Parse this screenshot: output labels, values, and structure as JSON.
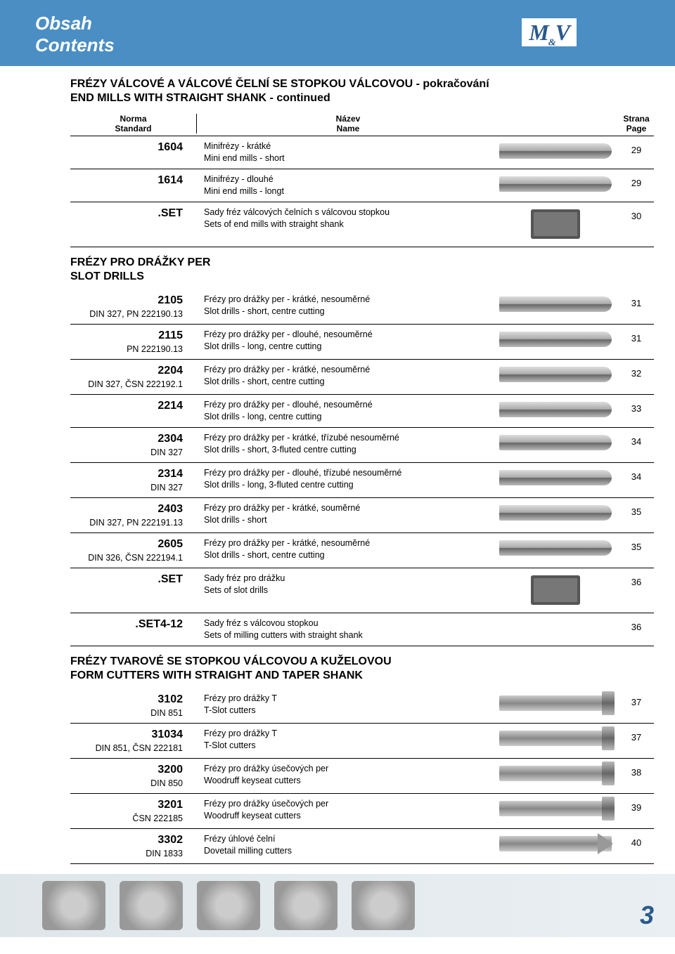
{
  "header": {
    "title_cz": "Obsah",
    "title_en": "Contents",
    "logo_text": "M&V"
  },
  "section1": {
    "title_cz": "FRÉZY VÁLCOVÉ A VÁLCOVÉ ČELNÍ SE STOPKOU VÁLCOVOU - pokračování",
    "title_en": "END MILLS WITH STRAIGHT SHANK - continued"
  },
  "tableHead": {
    "std_cz": "Norma",
    "std_en": "Standard",
    "name_cz": "Název",
    "name_en": "Name",
    "page_cz": "Strana",
    "page_en": "Page"
  },
  "rows1": [
    {
      "num": "1604",
      "std": "",
      "name_cz": "Minifrézy - krátké",
      "name_en": "Mini end mills - short",
      "page": "29",
      "img": "mill"
    },
    {
      "num": "1614",
      "std": "",
      "name_cz": "Minifrézy - dlouhé",
      "name_en": "Mini end mills - longt",
      "page": "29",
      "img": "mill"
    },
    {
      "num": ".SET",
      "std": "",
      "name_cz": "Sady fréz válcových čelních s válcovou stopkou",
      "name_en": "Sets of end mills with straight shank",
      "page": "30",
      "img": "box"
    }
  ],
  "section2": {
    "title_cz": "FRÉZY PRO DRÁŽKY PER",
    "title_en": "SLOT DRILLS"
  },
  "rows2": [
    {
      "num": "2105",
      "std": "DIN 327, PN 222190.13",
      "name_cz": "Frézy pro drážky per - krátké, nesouměrné",
      "name_en": "Slot drills - short, centre cutting",
      "page": "31",
      "img": "mill"
    },
    {
      "num": "2115",
      "std": "PN 222190.13",
      "name_cz": "Frézy pro drážky per - dlouhé, nesouměrné",
      "name_en": "Slot drills - long, centre cutting",
      "page": "31",
      "img": "mill"
    },
    {
      "num": "2204",
      "std": "DIN 327, ČSN 222192.1",
      "name_cz": "Frézy pro drážky per - krátké, nesouměrné",
      "name_en": "Slot drills - short, centre cutting",
      "page": "32",
      "img": "mill"
    },
    {
      "num": "2214",
      "std": "",
      "name_cz": "Frézy pro drážky per - dlouhé, nesouměrné",
      "name_en": "Slot drills - long, centre cutting",
      "page": "33",
      "img": "mill"
    },
    {
      "num": "2304",
      "std": "DIN 327",
      "name_cz": "Frézy pro drážky per - krátké, třízubé nesouměrné",
      "name_en": "Slot drills - short, 3-fluted centre cutting",
      "page": "34",
      "img": "mill"
    },
    {
      "num": "2314",
      "std": "DIN 327",
      "name_cz": "Frézy pro drážky per - dlouhé, třízubé nesouměrné",
      "name_en": "Slot drills - long, 3-fluted centre cutting",
      "page": "34",
      "img": "mill"
    },
    {
      "num": "2403",
      "std": "DIN 327, PN 222191.13",
      "name_cz": "Frézy pro drážky per - krátké, souměrné",
      "name_en": "Slot drills - short",
      "page": "35",
      "img": "mill"
    },
    {
      "num": "2605",
      "std": "DIN 326, ČSN 222194.1",
      "name_cz": "Frézy pro drážky per - krátké, nesouměrné",
      "name_en": "Slot drills - short, centre cutting",
      "page": "35",
      "img": "mill"
    },
    {
      "num": ".SET",
      "std": "",
      "name_cz": "Sady fréz pro drážku",
      "name_en": "Sets of slot drills",
      "page": "36",
      "img": "box"
    },
    {
      "num": ".SET4-12",
      "std": "",
      "name_cz": "Sady fréz s válcovou stopkou",
      "name_en": "Sets of milling cutters with straight shank",
      "page": "36",
      "img": ""
    }
  ],
  "section3": {
    "title_cz": "FRÉZY TVAROVÉ SE STOPKOU VÁLCOVOU A KUŽELOVOU",
    "title_en": "FORM CUTTERS WITH STRAIGHT AND TAPER SHANK"
  },
  "rows3": [
    {
      "num": "3102",
      "std": "DIN 851",
      "name_cz": "Frézy pro drážky T",
      "name_en": "T-Slot cutters",
      "page": "37",
      "img": "t-slot"
    },
    {
      "num": "31034",
      "std": "DIN 851, ČSN 222181",
      "name_cz": "Frézy pro drážky T",
      "name_en": "T-Slot cutters",
      "page": "37",
      "img": "t-slot"
    },
    {
      "num": "3200",
      "std": "DIN 850",
      "name_cz": "Frézy pro drážky úsečových per",
      "name_en": "Woodruff keyseat cutters",
      "page": "38",
      "img": "t-slot"
    },
    {
      "num": "3201",
      "std": "ČSN 222185",
      "name_cz": "Frézy pro drážky úsečových per",
      "name_en": "Woodruff keyseat cutters",
      "page": "39",
      "img": "t-slot"
    },
    {
      "num": "3302",
      "std": "DIN 1833",
      "name_cz": "Frézy úhlové čelní",
      "name_en": "Dovetail milling cutters",
      "page": "40",
      "img": "dovetail"
    }
  ],
  "pageNumber": "3"
}
